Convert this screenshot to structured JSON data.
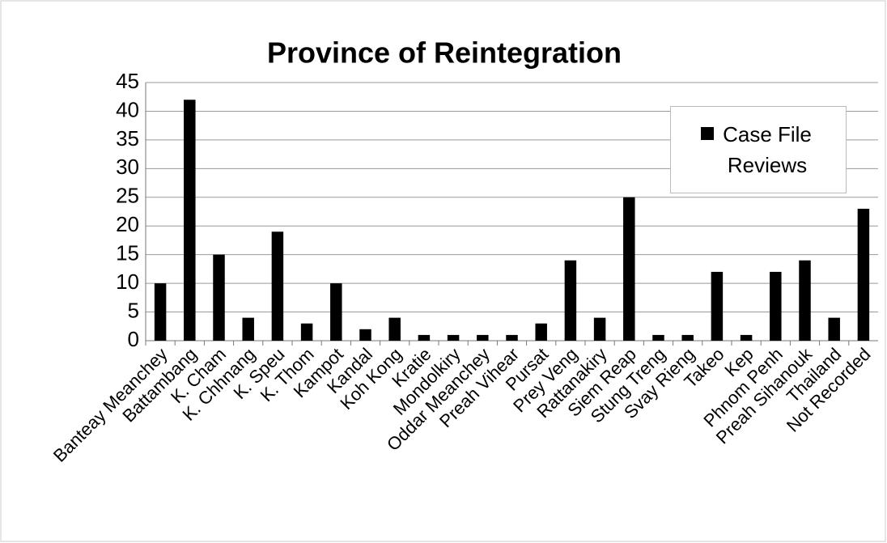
{
  "chart_data": {
    "type": "bar",
    "title": "Province of Reintegration",
    "categories": [
      "Banteay Meanchey",
      "Battambang",
      "K. Cham",
      "K. Chhnang",
      "K. Speu",
      "K. Thom",
      "Kampot",
      "Kandal",
      "Koh Kong",
      "Kratie",
      "Mondolkiry",
      "Oddar Meanchey",
      "Preah Vihear",
      "Pursat",
      "Prey Veng",
      "Rattanakiry",
      "Siem Reap",
      "Stung Treng",
      "Svay Rieng",
      "Takeo",
      "Kep",
      "Phnom Penh",
      "Preah Sihanouk",
      "Thailand",
      "Not Recorded"
    ],
    "series": [
      {
        "name": "Case File Reviews",
        "color": "#000000",
        "values": [
          10,
          42,
          15,
          4,
          19,
          3,
          10,
          2,
          4,
          1,
          1,
          1,
          1,
          3,
          14,
          4,
          25,
          1,
          1,
          12,
          1,
          12,
          14,
          4,
          23
        ]
      }
    ],
    "ylim": [
      0,
      45
    ],
    "yticks": [
      0,
      5,
      10,
      15,
      20,
      25,
      30,
      35,
      40,
      45
    ],
    "grid": true
  }
}
